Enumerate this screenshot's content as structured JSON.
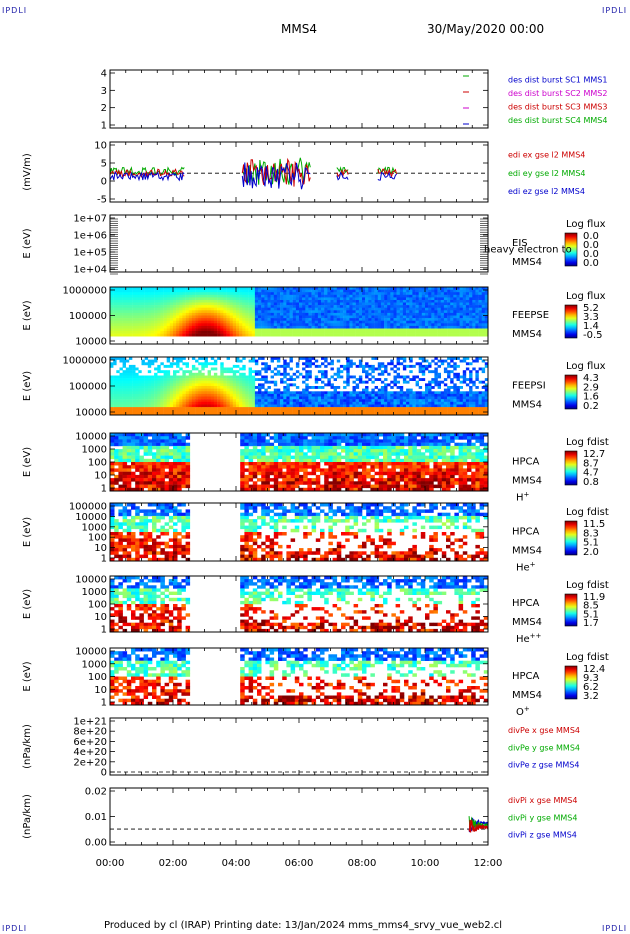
{
  "corners": {
    "tl": "IPDLI",
    "tr": "IPDLI",
    "bl": "IPDLI",
    "br": "IPDLI"
  },
  "header": {
    "spacecraft": "MMS4",
    "date": "30/May/2020 00:00"
  },
  "footer": {
    "text": "Produced by cl (IRAP)   Printing date: 13/Jan/2024   mms_mms4_srvy_vue_web2.cl"
  },
  "colors": {
    "c1": "#0000cc",
    "c2": "#cc00cc",
    "c3": "#cc0000",
    "c4": "#00aa00"
  },
  "chart_data": {
    "type": "heatmap",
    "x_ticks": [
      "00:00",
      "02:00",
      "04:00",
      "06:00",
      "08:00",
      "10:00",
      "12:00"
    ],
    "panels": [
      {
        "id": "burst",
        "ylabel": "",
        "yticks": [
          "4",
          "3",
          "2",
          "1"
        ],
        "legend": [
          {
            "name": "des dist burst SC1 MMS1",
            "color": "#0000cc"
          },
          {
            "name": "des dist burst SC2 MMS2",
            "color": "#cc00cc"
          },
          {
            "name": "des dist burst SC3 MMS3",
            "color": "#cc0000"
          },
          {
            "name": "des dist burst SC4 MMS4",
            "color": "#00aa00"
          }
        ]
      },
      {
        "id": "edi",
        "ylabel": "(mV/m)",
        "yticks": [
          "10",
          "5",
          "0",
          "-5"
        ],
        "legend": [
          {
            "name": "edi ex gse l2 MMS4",
            "color": "#cc0000"
          },
          {
            "name": "edi ey gse l2 MMS4",
            "color": "#00aa00"
          },
          {
            "name": "edi ez gse l2 MMS4",
            "color": "#0000cc"
          }
        ]
      },
      {
        "id": "eis",
        "ylabel": "E (eV)",
        "yticks": [
          "1e+07",
          "1e+06",
          "1e+05",
          "1e+04"
        ],
        "inst": "EIS",
        "sc": "MMS4",
        "overlay": "heavy electron to",
        "cb_title": "Log flux",
        "cb": [
          "0.0",
          "0.0",
          "0.0",
          "0.0"
        ]
      },
      {
        "id": "feepse",
        "ylabel": "E (eV)",
        "yticks": [
          "1000000",
          "100000",
          "10000"
        ],
        "inst": "FEEPSE",
        "sc": "MMS4",
        "cb_title": "Log flux",
        "cb": [
          "5.2",
          "3.3",
          "1.4",
          "-0.5"
        ]
      },
      {
        "id": "feepsi",
        "ylabel": "E (eV)",
        "yticks": [
          "1000000",
          "100000",
          "10000"
        ],
        "inst": "FEEPSI",
        "sc": "MMS4",
        "cb_title": "Log flux",
        "cb": [
          "4.3",
          "2.9",
          "1.6",
          "0.2"
        ]
      },
      {
        "id": "hpca_h",
        "ylabel": "E (eV)",
        "yticks": [
          "10000",
          "1000",
          "100",
          "10",
          "1"
        ],
        "inst": "HPCA",
        "sc": "MMS4",
        "species": "H",
        "sup": "+",
        "cb_title": "Log fdist",
        "cb": [
          "12.7",
          "8.7",
          "4.7",
          "0.8"
        ]
      },
      {
        "id": "hpca_he",
        "ylabel": "E (eV)",
        "yticks": [
          "100000",
          "10000",
          "1000",
          "100",
          "10",
          "1"
        ],
        "inst": "HPCA",
        "sc": "MMS4",
        "species": "He",
        "sup": "+",
        "cb_title": "Log fdist",
        "cb": [
          "11.5",
          "8.3",
          "5.1",
          "2.0"
        ]
      },
      {
        "id": "hpca_hepp",
        "ylabel": "E (eV)",
        "yticks": [
          "10000",
          "1000",
          "100",
          "10",
          "1"
        ],
        "inst": "HPCA",
        "sc": "MMS4",
        "species": "He",
        "sup": "++",
        "cb_title": "Log fdist",
        "cb": [
          "11.9",
          "8.5",
          "5.1",
          "1.7"
        ]
      },
      {
        "id": "hpca_o",
        "ylabel": "E (eV)",
        "yticks": [
          "10000",
          "1000",
          "100",
          "10",
          "1"
        ],
        "inst": "HPCA",
        "sc": "MMS4",
        "species": "O",
        "sup": "+",
        "cb_title": "Log fdist",
        "cb": [
          "12.4",
          "9.3",
          "6.2",
          "3.2"
        ]
      },
      {
        "id": "divpe",
        "ylabel": "(nPa/km)",
        "yticks": [
          "1e+21",
          "8e+20",
          "6e+20",
          "4e+20",
          "2e+20",
          "0"
        ],
        "legend": [
          {
            "name": "divPe x gse MMS4",
            "color": "#cc0000"
          },
          {
            "name": "divPe y gse MMS4",
            "color": "#00aa00"
          },
          {
            "name": "divPe z gse MMS4",
            "color": "#0000cc"
          }
        ]
      },
      {
        "id": "divpi",
        "ylabel": "(nPa/km)",
        "yticks": [
          "0.02",
          "0.01",
          "0.00"
        ],
        "legend": [
          {
            "name": "divPi x gse MMS4",
            "color": "#cc0000"
          },
          {
            "name": "divPi y gse MMS4",
            "color": "#00aa00"
          },
          {
            "name": "divPi z gse MMS4",
            "color": "#0000cc"
          }
        ]
      }
    ]
  }
}
